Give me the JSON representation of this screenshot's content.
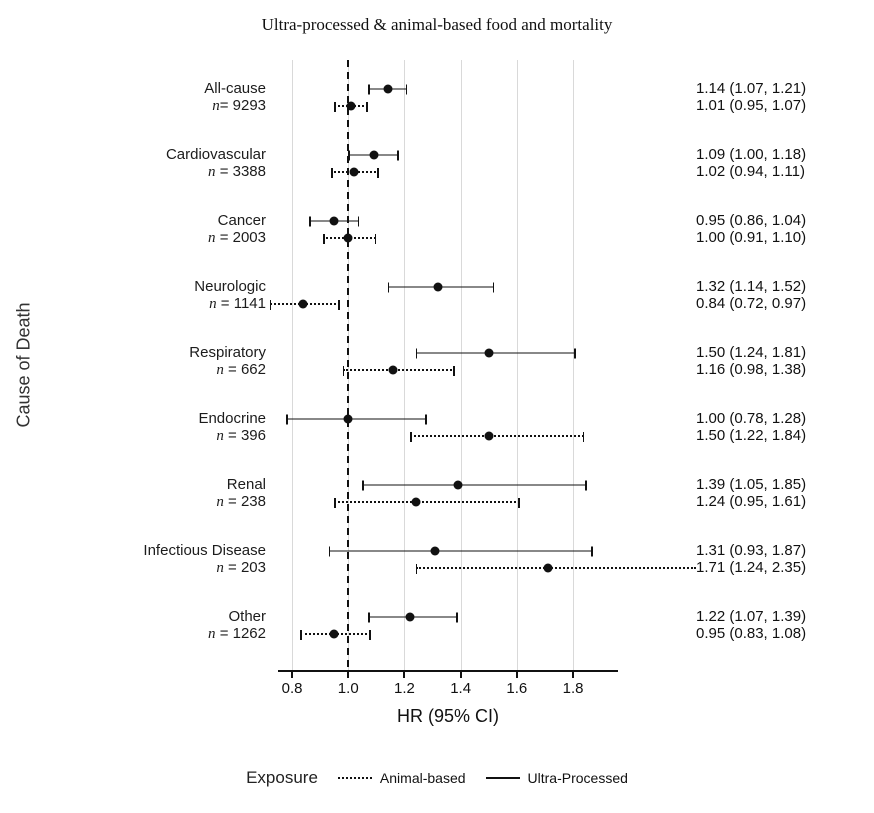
{
  "title": "Ultra-processed & animal-based food and mortality",
  "colors": {
    "marker": "#111111",
    "grid": "#d9d9d9",
    "reference_line": "#111111",
    "text": "#1a1a1a"
  },
  "chart_data": {
    "type": "scatter",
    "subtype": "forest-plot",
    "title": "Ultra-processed & animal-based food and mortality",
    "xlabel": "HR (95% CI)",
    "ylabel": "Cause of Death",
    "xlim": [
      0.75,
      1.96
    ],
    "x_ticks": [
      0.8,
      1.0,
      1.2,
      1.4,
      1.6,
      1.8
    ],
    "reference_line": 1.0,
    "grid": true,
    "legend": {
      "title": "Exposure",
      "position": "bottom",
      "items": [
        {
          "label": "Animal-based",
          "line_style": "dotted"
        },
        {
          "label": "Ultra-Processed",
          "line_style": "solid"
        }
      ]
    },
    "rows": [
      {
        "cause": "All-cause",
        "n_label": "n= 9293",
        "ultra_processed": {
          "hr": 1.14,
          "ci_low": 1.07,
          "ci_high": 1.21,
          "text": "1.14 (1.07, 1.21)"
        },
        "animal_based": {
          "hr": 1.01,
          "ci_low": 0.95,
          "ci_high": 1.07,
          "text": "1.01 (0.95, 1.07)"
        }
      },
      {
        "cause": "Cardiovascular",
        "n_label": "n = 3388",
        "ultra_processed": {
          "hr": 1.09,
          "ci_low": 1.0,
          "ci_high": 1.18,
          "text": "1.09 (1.00, 1.18)"
        },
        "animal_based": {
          "hr": 1.02,
          "ci_low": 0.94,
          "ci_high": 1.11,
          "text": "1.02 (0.94, 1.11)"
        }
      },
      {
        "cause": "Cancer",
        "n_label": "n = 2003",
        "ultra_processed": {
          "hr": 0.95,
          "ci_low": 0.86,
          "ci_high": 1.04,
          "text": "0.95 (0.86, 1.04)"
        },
        "animal_based": {
          "hr": 1.0,
          "ci_low": 0.91,
          "ci_high": 1.1,
          "text": "1.00 (0.91, 1.10)"
        }
      },
      {
        "cause": "Neurologic",
        "n_label": "n = 1141",
        "ultra_processed": {
          "hr": 1.32,
          "ci_low": 1.14,
          "ci_high": 1.52,
          "text": "1.32 (1.14, 1.52)"
        },
        "animal_based": {
          "hr": 0.84,
          "ci_low": 0.72,
          "ci_high": 0.97,
          "text": "0.84 (0.72, 0.97)"
        }
      },
      {
        "cause": "Respiratory",
        "n_label": "n = 662",
        "ultra_processed": {
          "hr": 1.5,
          "ci_low": 1.24,
          "ci_high": 1.81,
          "text": "1.50 (1.24, 1.81)"
        },
        "animal_based": {
          "hr": 1.16,
          "ci_low": 0.98,
          "ci_high": 1.38,
          "text": "1.16 (0.98, 1.38)"
        }
      },
      {
        "cause": "Endocrine",
        "n_label": "n = 396",
        "ultra_processed": {
          "hr": 1.0,
          "ci_low": 0.78,
          "ci_high": 1.28,
          "text": "1.00 (0.78, 1.28)"
        },
        "animal_based": {
          "hr": 1.5,
          "ci_low": 1.22,
          "ci_high": 1.84,
          "text": "1.50 (1.22, 1.84)"
        }
      },
      {
        "cause": "Renal",
        "n_label": "n = 238",
        "ultra_processed": {
          "hr": 1.39,
          "ci_low": 1.05,
          "ci_high": 1.85,
          "text": "1.39 (1.05, 1.85)"
        },
        "animal_based": {
          "hr": 1.24,
          "ci_low": 0.95,
          "ci_high": 1.61,
          "text": "1.24 (0.95, 1.61)"
        }
      },
      {
        "cause": "Infectious Disease",
        "n_label": "n = 203",
        "ultra_processed": {
          "hr": 1.31,
          "ci_low": 0.93,
          "ci_high": 1.87,
          "text": "1.31 (0.93, 1.87)"
        },
        "animal_based": {
          "hr": 1.71,
          "ci_low": 1.24,
          "ci_high": 2.35,
          "text": "1.71 (1.24, 2.35)"
        }
      },
      {
        "cause": "Other",
        "n_label": "n = 1262",
        "ultra_processed": {
          "hr": 1.22,
          "ci_low": 1.07,
          "ci_high": 1.39,
          "text": "1.22 (1.07, 1.39)"
        },
        "animal_based": {
          "hr": 0.95,
          "ci_low": 0.83,
          "ci_high": 1.08,
          "text": "0.95 (0.83, 1.08)"
        }
      }
    ]
  }
}
